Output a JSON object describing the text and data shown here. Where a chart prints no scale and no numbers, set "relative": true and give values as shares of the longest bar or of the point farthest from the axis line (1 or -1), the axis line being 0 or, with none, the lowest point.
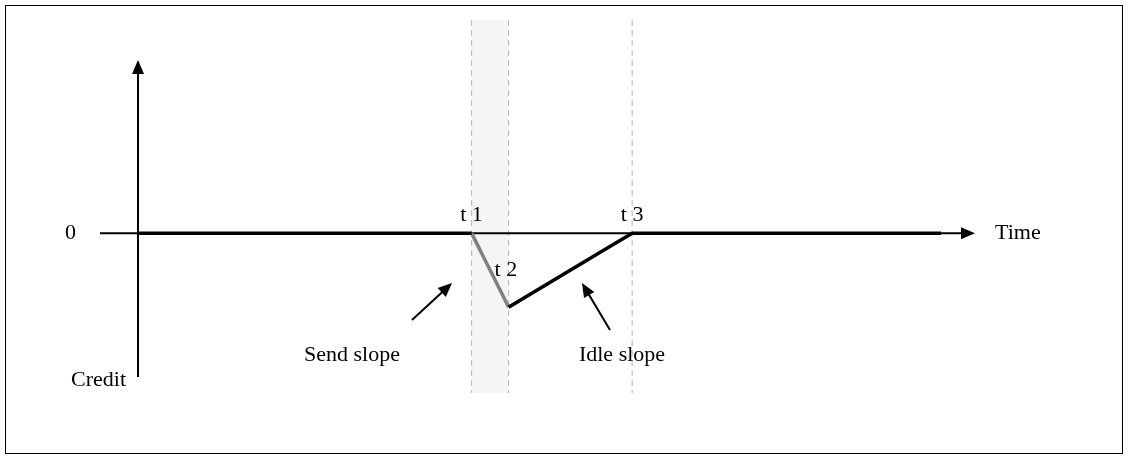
{
  "chart_data": {
    "type": "line",
    "relative": true,
    "xlabel": "Time",
    "ylabel": "Credit",
    "marker": "none",
    "legend": false,
    "categories": [
      null,
      null,
      null,
      null,
      null,
      null,
      null,
      null,
      null,
      null,
      null,
      null,
      null,
      null,
      null,
      null,
      null,
      null,
      null,
      null,
      null,
      null,
      null,
      null,
      null,
      null,
      null,
      "t 1",
      null,
      null,
      "t 2",
      null,
      null,
      null,
      null,
      null,
      null,
      null,
      null,
      null,
      "t 3",
      null,
      null,
      null,
      null,
      null,
      null,
      null,
      null,
      null,
      null,
      null,
      null,
      null,
      null,
      null,
      null,
      null,
      null,
      null,
      null,
      null,
      null,
      null,
      null,
      null
    ],
    "series": [
      {
        "color": "#000000",
        "values": [
          0,
          null,
          null,
          null,
          null,
          null,
          null,
          null,
          null,
          null,
          null,
          null,
          null,
          null,
          null,
          null,
          null,
          null,
          null,
          null,
          null,
          null,
          null,
          null,
          null,
          null,
          null,
          0,
          null,
          null,
          null,
          null,
          null,
          null,
          null,
          null,
          null,
          null,
          null,
          null,
          null,
          null,
          null,
          null,
          null,
          null,
          null,
          null,
          null,
          null,
          null,
          null,
          null,
          null,
          null,
          null,
          null,
          null,
          null,
          null,
          null,
          null,
          null,
          null,
          null,
          null
        ]
      },
      {
        "color": "#000000",
        "values": [
          null,
          null,
          null,
          null,
          null,
          null,
          null,
          null,
          null,
          null,
          null,
          null,
          null,
          null,
          null,
          null,
          null,
          null,
          null,
          null,
          null,
          null,
          null,
          null,
          null,
          null,
          null,
          null,
          null,
          null,
          -1,
          null,
          null,
          null,
          null,
          null,
          null,
          null,
          null,
          null,
          0,
          null,
          null,
          null,
          null,
          null,
          null,
          null,
          null,
          null,
          null,
          null,
          null,
          null,
          null,
          null,
          null,
          null,
          null,
          null,
          null,
          null,
          null,
          null,
          null,
          0
        ]
      },
      {
        "color": "#808080",
        "values": [
          null,
          null,
          null,
          null,
          null,
          null,
          null,
          null,
          null,
          null,
          null,
          null,
          null,
          null,
          null,
          null,
          null,
          null,
          null,
          null,
          null,
          null,
          null,
          null,
          null,
          null,
          null,
          0,
          null,
          null,
          -1,
          null,
          null,
          null,
          null,
          null,
          null,
          null,
          null,
          null,
          null,
          null,
          null,
          null,
          null,
          null,
          null,
          null,
          null,
          null,
          null,
          null,
          null,
          null,
          null,
          null,
          null,
          null,
          null,
          null,
          null,
          null,
          null,
          null,
          null,
          null
        ]
      }
    ],
    "ref_lines": [
      {
        "axis": "x",
        "value": "t 1",
        "color": "#c0c0c0",
        "line_style": "dashed"
      },
      {
        "axis": "x",
        "value": "t 2",
        "color": "#c0c0c0",
        "line_style": "dashed"
      },
      {
        "axis": "x",
        "value": "t 3",
        "color": "#c0c0c0",
        "line_style": "dashed"
      }
    ],
    "bands": [
      {
        "axis": "x",
        "from": "t 1",
        "to": "t 2",
        "color": "#f5f5f5"
      }
    ],
    "annotations": [
      "0",
      "Send slope",
      "Idle slope"
    ]
  }
}
